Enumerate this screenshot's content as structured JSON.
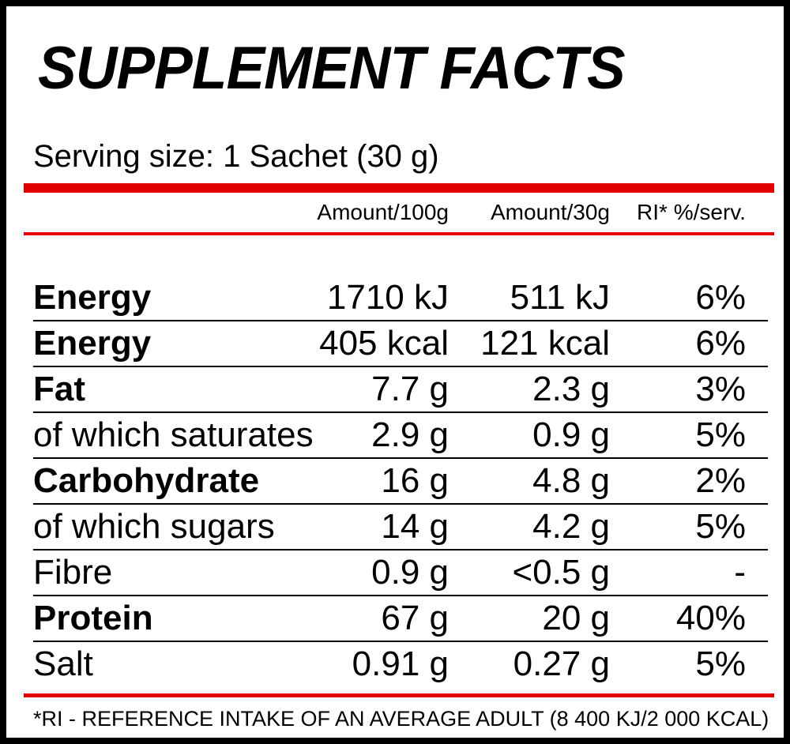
{
  "title": "SUPPLEMENT FACTS",
  "serving_size": "Serving size: 1 Sachet (30 g)",
  "columns": {
    "per_100g": "Amount/100g",
    "per_30g": "Amount/30g",
    "ri": "RI* %/serv."
  },
  "rows": [
    {
      "name": "Energy",
      "per_100g": "1710 kJ",
      "per_30g": "511 kJ",
      "ri": "6%",
      "bold": true
    },
    {
      "name": "Energy",
      "per_100g": "405 kcal",
      "per_30g": "121 kcal",
      "ri": "6%",
      "bold": true
    },
    {
      "name": "Fat",
      "per_100g": "7.7 g",
      "per_30g": "2.3 g",
      "ri": "3%",
      "bold": true
    },
    {
      "name": "of which saturates",
      "per_100g": "2.9 g",
      "per_30g": "0.9 g",
      "ri": "5%",
      "bold": false
    },
    {
      "name": "Carbohydrate",
      "per_100g": "16 g",
      "per_30g": "4.8 g",
      "ri": "2%",
      "bold": true
    },
    {
      "name": "of which sugars",
      "per_100g": "14 g",
      "per_30g": "4.2 g",
      "ri": "5%",
      "bold": false
    },
    {
      "name": "Fibre",
      "per_100g": "0.9 g",
      "per_30g": "<0.5 g",
      "ri": "-",
      "bold": false
    },
    {
      "name": "Protein",
      "per_100g": "67 g",
      "per_30g": "20 g",
      "ri": "40%",
      "bold": true
    },
    {
      "name": "Salt",
      "per_100g": "0.91 g",
      "per_30g": "0.27 g",
      "ri": "5%",
      "bold": false
    }
  ],
  "footnote": "*RI - REFERENCE INTAKE OF AN AVERAGE ADULT (8 400 KJ/2 000 KCAL)",
  "colors": {
    "accent": "#e00000",
    "text": "#000000",
    "background": "#ffffff"
  }
}
